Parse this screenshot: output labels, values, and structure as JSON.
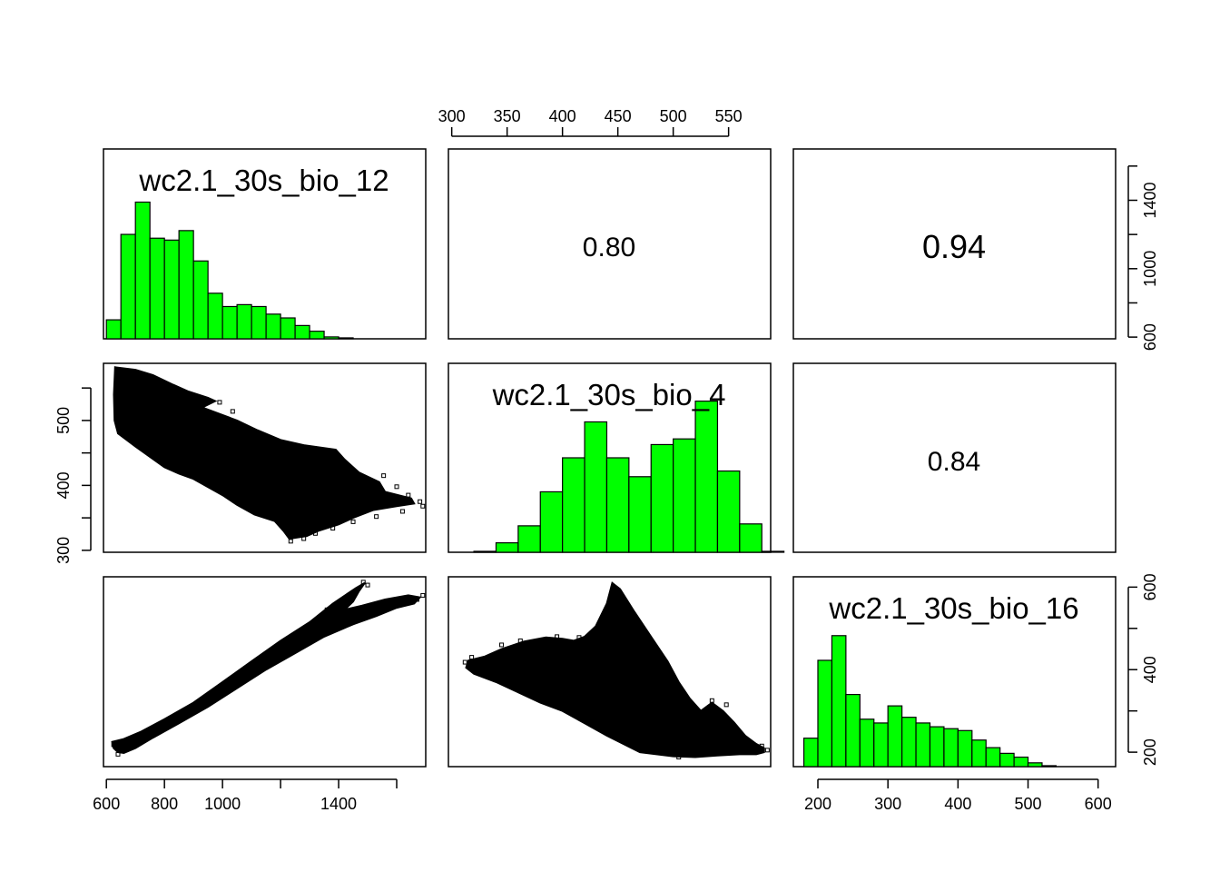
{
  "chart_data": {
    "type": "pairs",
    "variables": [
      "wc2.1_30s_bio_12",
      "wc2.1_30s_bio_4",
      "wc2.1_30s_bio_16"
    ],
    "axes": {
      "bio_12": {
        "range": [
          590,
          1700
        ],
        "ticks": [
          600,
          800,
          1000,
          1400
        ],
        "hidden_ticks": [
          1200,
          1600
        ]
      },
      "bio_4": {
        "range": [
          297,
          588
        ],
        "ticks": [
          300,
          350,
          400,
          450,
          500,
          550
        ],
        "left_labels": [
          300,
          400,
          500
        ]
      },
      "bio_16": {
        "range": [
          165,
          625
        ],
        "ticks": [
          200,
          300,
          400,
          500,
          600
        ],
        "right_labels": [
          200,
          400,
          600
        ],
        "hidden_ticks": [
          300,
          500
        ]
      }
    },
    "right_axis_top": {
      "range": [
        590,
        1700
      ],
      "ticks": [
        600,
        800,
        1000,
        1200,
        1400,
        1600
      ],
      "labels": [
        600,
        1000,
        1400
      ]
    },
    "correlations": [
      {
        "pair": [
          "wc2.1_30s_bio_12",
          "wc2.1_30s_bio_4"
        ],
        "value": "0.80"
      },
      {
        "pair": [
          "wc2.1_30s_bio_12",
          "wc2.1_30s_bio_16"
        ],
        "value": "0.94"
      },
      {
        "pair": [
          "wc2.1_30s_bio_4",
          "wc2.1_30s_bio_16"
        ],
        "value": "0.84"
      }
    ],
    "histograms": [
      {
        "variable": "wc2.1_30s_bio_12",
        "bin_width": 50,
        "start": 600,
        "heights": [
          0.1,
          0.55,
          0.72,
          0.53,
          0.52,
          0.57,
          0.41,
          0.24,
          0.17,
          0.18,
          0.17,
          0.13,
          0.11,
          0.07,
          0.04,
          0.01,
          0.005
        ]
      },
      {
        "variable": "wc2.1_30s_bio_4",
        "bin_width": 20,
        "start": 320,
        "heights": [
          0.005,
          0.05,
          0.14,
          0.32,
          0.5,
          0.69,
          0.5,
          0.4,
          0.57,
          0.6,
          0.8,
          0.43,
          0.15,
          0.005
        ]
      },
      {
        "variable": "wc2.1_30s_bio_16",
        "bin_width": 20,
        "start": 180,
        "heights": [
          0.15,
          0.56,
          0.69,
          0.38,
          0.25,
          0.23,
          0.32,
          0.26,
          0.23,
          0.21,
          0.2,
          0.19,
          0.14,
          0.1,
          0.07,
          0.05,
          0.02,
          0.005
        ]
      }
    ],
    "histogram_color": "#00ff00",
    "point_color": "#000000"
  }
}
